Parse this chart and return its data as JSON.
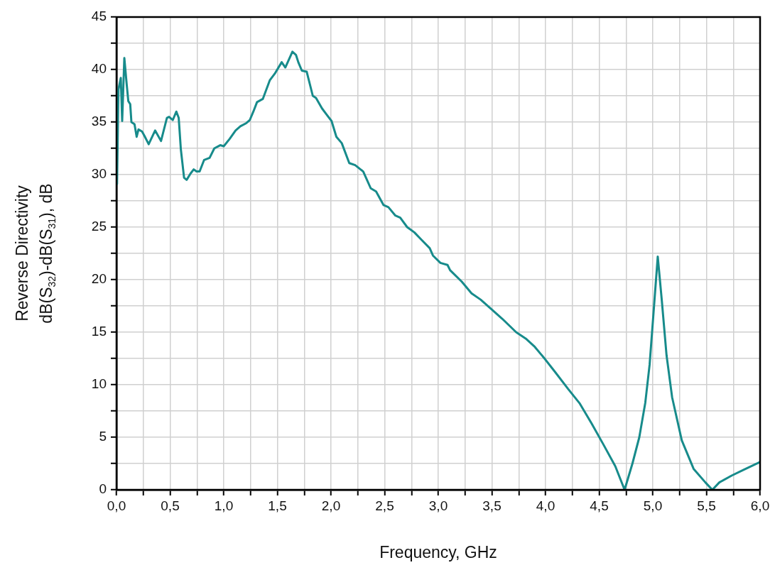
{
  "chart_data": {
    "type": "line",
    "xlabel": "Frequency, GHz",
    "ylabel": "Reverse Directivity\ndB(S$_{32}$)-dB(S$_{31}$), dB",
    "xlim": [
      0,
      6
    ],
    "ylim": [
      0,
      45
    ],
    "xticks": [
      {
        "value": 0,
        "label": "0,0"
      },
      {
        "value": 0.25,
        "label": null
      },
      {
        "value": 0.5,
        "label": "0,5"
      },
      {
        "value": 0.75,
        "label": null
      },
      {
        "value": 1,
        "label": "1,0"
      },
      {
        "value": 1.25,
        "label": null
      },
      {
        "value": 1.5,
        "label": "1,5"
      },
      {
        "value": 1.75,
        "label": null
      },
      {
        "value": 2,
        "label": "2,0"
      },
      {
        "value": 2.25,
        "label": null
      },
      {
        "value": 2.5,
        "label": "2,5"
      },
      {
        "value": 2.75,
        "label": null
      },
      {
        "value": 3,
        "label": "3,0"
      },
      {
        "value": 3.25,
        "label": null
      },
      {
        "value": 3.5,
        "label": "3,5"
      },
      {
        "value": 3.75,
        "label": null
      },
      {
        "value": 4,
        "label": "4,0"
      },
      {
        "value": 4.25,
        "label": null
      },
      {
        "value": 4.5,
        "label": "4,5"
      },
      {
        "value": 4.75,
        "label": null
      },
      {
        "value": 5,
        "label": "5,0"
      },
      {
        "value": 5.25,
        "label": null
      },
      {
        "value": 5.5,
        "label": "5,5"
      },
      {
        "value": 5.75,
        "label": null
      },
      {
        "value": 6,
        "label": "6,0"
      }
    ],
    "yticks": [
      0,
      {
        "value": 2.5,
        "label": null
      },
      5,
      {
        "value": 7.5,
        "label": null
      },
      10,
      {
        "value": 12.5,
        "label": null
      },
      15,
      {
        "value": 17.5,
        "label": null
      },
      20,
      {
        "value": 22.5,
        "label": null
      },
      25,
      {
        "value": 27.5,
        "label": null
      },
      30,
      {
        "value": 32.5,
        "label": null
      },
      35,
      {
        "value": 37.5,
        "label": null
      },
      40,
      {
        "value": 42.5,
        "label": null
      },
      45
    ],
    "grid": true,
    "legend": false,
    "marker": "none",
    "line_style": "solid",
    "series": [
      {
        "color": "#178b8b",
        "x": [
          0.005,
          0.018,
          0.04,
          0.053,
          0.073,
          0.095,
          0.11,
          0.128,
          0.139,
          0.168,
          0.188,
          0.205,
          0.238,
          0.26,
          0.3,
          0.36,
          0.415,
          0.47,
          0.49,
          0.525,
          0.558,
          0.58,
          0.6,
          0.63,
          0.654,
          0.69,
          0.72,
          0.746,
          0.775,
          0.817,
          0.868,
          0.912,
          0.967,
          1.0,
          1.055,
          1.11,
          1.155,
          1.21,
          1.243,
          1.276,
          1.31,
          1.364,
          1.43,
          1.475,
          1.54,
          1.574,
          1.64,
          1.673,
          1.695,
          1.728,
          1.773,
          1.83,
          1.86,
          1.916,
          1.96,
          2.005,
          2.05,
          2.1,
          2.17,
          2.225,
          2.3,
          2.37,
          2.42,
          2.49,
          2.535,
          2.6,
          2.645,
          2.71,
          2.777,
          2.843,
          2.92,
          2.95,
          3.02,
          3.086,
          3.11,
          3.22,
          3.31,
          3.395,
          3.505,
          3.594,
          3.726,
          3.815,
          3.9,
          3.99,
          4.09,
          4.21,
          4.32,
          4.43,
          4.54,
          4.65,
          4.737,
          4.81,
          4.874,
          4.93,
          4.97,
          5.007,
          5.046,
          5.084,
          5.128,
          5.18,
          5.27,
          5.38,
          5.49,
          5.555,
          5.62,
          5.735,
          5.846,
          6.0
        ],
        "values": [
          29.1,
          38.1,
          39.2,
          35.1,
          41.1,
          38.6,
          37.0,
          36.7,
          35.0,
          34.8,
          33.6,
          34.3,
          34.1,
          33.7,
          32.9,
          34.2,
          33.2,
          35.4,
          35.5,
          35.2,
          36.0,
          35.4,
          32.4,
          29.7,
          29.5,
          30.1,
          30.5,
          30.3,
          30.3,
          31.4,
          31.6,
          32.5,
          32.8,
          32.7,
          33.4,
          34.2,
          34.6,
          34.9,
          35.2,
          36.0,
          36.9,
          37.2,
          39.0,
          39.6,
          40.7,
          40.2,
          41.7,
          41.4,
          40.7,
          39.9,
          39.8,
          37.5,
          37.3,
          36.3,
          35.7,
          35.1,
          33.6,
          33.0,
          31.1,
          30.9,
          30.3,
          28.7,
          28.4,
          27.1,
          26.9,
          26.1,
          25.9,
          25.0,
          24.5,
          23.8,
          23.0,
          22.3,
          21.6,
          21.4,
          20.9,
          19.8,
          18.7,
          18.1,
          17.1,
          16.3,
          15.0,
          14.4,
          13.6,
          12.5,
          11.2,
          9.6,
          8.2,
          6.3,
          4.3,
          2.25,
          0,
          2.5,
          5.0,
          8.3,
          11.9,
          16.9,
          22.2,
          18.0,
          12.8,
          8.8,
          4.7,
          2.0,
          0.7,
          0,
          0.7,
          1.35,
          1.9,
          2.65
        ]
      }
    ]
  }
}
